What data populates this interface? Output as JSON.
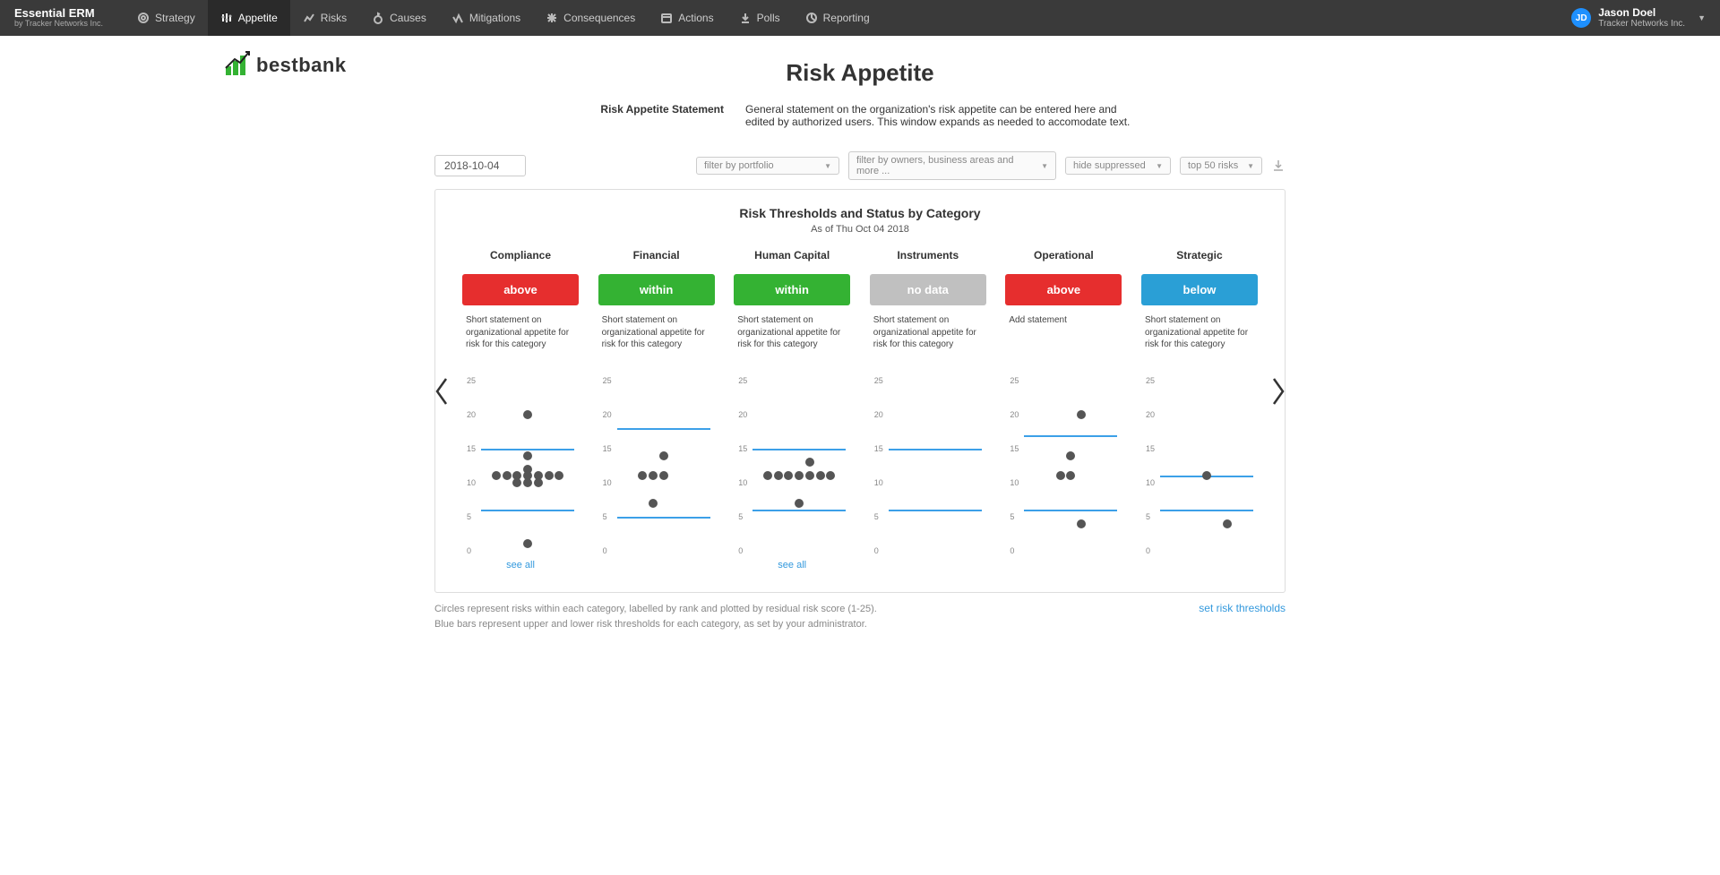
{
  "brand": {
    "title": "Essential ERM",
    "subtitle": "by Tracker Networks Inc."
  },
  "nav": {
    "items": [
      {
        "id": "strategy",
        "label": "Strategy"
      },
      {
        "id": "appetite",
        "label": "Appetite"
      },
      {
        "id": "risks",
        "label": "Risks"
      },
      {
        "id": "causes",
        "label": "Causes"
      },
      {
        "id": "mitigations",
        "label": "Mitigations"
      },
      {
        "id": "consequences",
        "label": "Consequences"
      },
      {
        "id": "actions",
        "label": "Actions"
      },
      {
        "id": "polls",
        "label": "Polls"
      },
      {
        "id": "reporting",
        "label": "Reporting"
      }
    ],
    "active": "appetite"
  },
  "user": {
    "initials": "JD",
    "name": "Jason Doel",
    "company": "Tracker Networks Inc."
  },
  "logo": {
    "text": "bestbank"
  },
  "page": {
    "title": "Risk Appetite"
  },
  "statement": {
    "label": "Risk Appetite Statement",
    "body": "General statement on the organization's risk appetite can be entered here and edited by authorized users.  This window expands as needed to accomodate text."
  },
  "filters": {
    "date": "2018-10-04",
    "portfolio": "filter by portfolio",
    "owners": "filter by owners, business areas and more ...",
    "suppressed": "hide suppressed",
    "top": "top 50 risks"
  },
  "panel": {
    "title": "Risk Thresholds and Status by Category",
    "subtitle": "As of Thu Oct 04 2018",
    "y": {
      "min": 0,
      "max": 25,
      "step": 5
    }
  },
  "colors": {
    "above": "#e62e2e",
    "within": "#34b233",
    "nodata": "#c0c0c0",
    "below": "#2a9fd6",
    "threshold": "#3ca0e8",
    "dot": "#555555"
  },
  "categories": [
    {
      "name": "Compliance",
      "status": "above",
      "status_label": "above",
      "desc": "Short statement on organizational appetite for risk for this category",
      "thresholds": [
        6,
        15
      ],
      "points": [
        [
          5,
          20
        ],
        [
          5,
          14
        ],
        [
          5,
          12
        ],
        [
          2,
          11
        ],
        [
          3,
          11
        ],
        [
          4,
          11
        ],
        [
          5,
          11
        ],
        [
          6,
          11
        ],
        [
          7,
          11
        ],
        [
          8,
          11
        ],
        [
          4,
          10
        ],
        [
          5,
          10
        ],
        [
          6,
          10
        ],
        [
          5,
          1
        ]
      ],
      "see_all": true
    },
    {
      "name": "Financial",
      "status": "within",
      "status_label": "within",
      "desc": "Short statement on organizational appetite for risk for this category",
      "thresholds": [
        5,
        18
      ],
      "points": [
        [
          5,
          14
        ],
        [
          3,
          11
        ],
        [
          4,
          11
        ],
        [
          5,
          11
        ],
        [
          4,
          7
        ]
      ],
      "see_all": false
    },
    {
      "name": "Human Capital",
      "status": "within",
      "status_label": "within",
      "desc": "Short statement on organizational appetite for risk for this category",
      "thresholds": [
        6,
        15
      ],
      "points": [
        [
          6,
          13
        ],
        [
          2,
          11
        ],
        [
          3,
          11
        ],
        [
          4,
          11
        ],
        [
          5,
          11
        ],
        [
          6,
          11
        ],
        [
          7,
          11
        ],
        [
          8,
          11
        ],
        [
          5,
          7
        ]
      ],
      "see_all": true
    },
    {
      "name": "Instruments",
      "status": "nodata",
      "status_label": "no data",
      "desc": "Short statement on organizational appetite for risk for this category",
      "thresholds": [
        6,
        15
      ],
      "points": [],
      "see_all": false
    },
    {
      "name": "Operational",
      "status": "above",
      "status_label": "above",
      "desc": "Add statement",
      "thresholds": [
        6,
        17
      ],
      "points": [
        [
          6,
          20
        ],
        [
          5,
          14
        ],
        [
          4,
          11
        ],
        [
          5,
          11
        ],
        [
          6,
          4
        ]
      ],
      "see_all": false
    },
    {
      "name": "Strategic",
      "status": "below",
      "status_label": "below",
      "desc": "Short statement on organizational appetite for risk for this category",
      "thresholds": [
        6,
        11
      ],
      "points": [
        [
          5,
          11
        ],
        [
          7,
          4
        ]
      ],
      "see_all": false
    }
  ],
  "footnotes": {
    "line1": "Circles represent risks within each category, labelled by rank and plotted by residual risk score (1-25).",
    "line2": "Blue bars represent upper and lower risk thresholds for each category, as set by your administrator.",
    "link": "set risk thresholds"
  },
  "labels": {
    "see_all": "see all"
  }
}
